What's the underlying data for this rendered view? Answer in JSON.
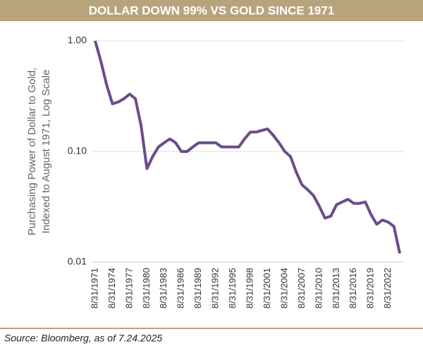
{
  "chart_data": {
    "type": "line",
    "title": "DOLLAR DOWN 99% VS GOLD SINCE 1971",
    "y_label": [
      "Purchasing Power of Dollar to Gold,",
      "Indexed to August 1971, Log Scale"
    ],
    "source": "Source: Bloomberg, as of 7.24.2025",
    "log_scale": true,
    "grid": true,
    "ylim": [
      0.01,
      1
    ],
    "yticks": [
      0.01,
      {
        "value": 0.1,
        "label": "0.10"
      },
      {
        "value": 1,
        "label": "1.00"
      }
    ],
    "xticks": [
      "8/31/1971",
      "8/31/1974",
      "8/31/1977",
      "8/31/1980",
      "8/31/1983",
      "8/31/1986",
      "8/31/1989",
      "8/31/1992",
      "8/31/1995",
      "8/31/1998",
      "8/31/2001",
      "8/31/2004",
      "8/31/2007",
      "8/31/2010",
      "8/31/2013",
      "8/31/2016",
      "8/31/2019",
      "8/31/2022"
    ],
    "x": [
      "8/31/1971",
      "8/31/1972",
      "8/31/1973",
      "8/31/1974",
      "8/31/1975",
      "8/31/1976",
      "8/31/1977",
      "8/31/1978",
      "8/31/1979",
      "8/31/1980",
      "8/31/1981",
      "8/31/1982",
      "8/31/1983",
      "8/31/1984",
      "8/31/1985",
      "8/31/1986",
      "8/31/1987",
      "8/31/1988",
      "8/31/1989",
      "8/31/1990",
      "8/31/1991",
      "8/31/1992",
      "8/31/1993",
      "8/31/1994",
      "8/31/1995",
      "8/31/1996",
      "8/31/1997",
      "8/31/1998",
      "8/31/1999",
      "8/31/2000",
      "8/31/2001",
      "8/31/2002",
      "8/31/2003",
      "8/31/2004",
      "8/31/2005",
      "8/31/2006",
      "8/31/2007",
      "8/31/2008",
      "8/31/2009",
      "8/31/2010",
      "8/31/2011",
      "8/31/2012",
      "8/31/2013",
      "8/31/2014",
      "8/31/2015",
      "8/31/2016",
      "8/31/2017",
      "8/31/2018",
      "8/31/2019",
      "8/31/2020",
      "8/31/2021",
      "8/31/2022",
      "8/31/2023",
      "8/31/2024"
    ],
    "series": [
      {
        "color": "#6b4c8a",
        "values": [
          1.0,
          0.65,
          0.4,
          0.27,
          0.28,
          0.3,
          0.33,
          0.3,
          0.17,
          0.07,
          0.09,
          0.11,
          0.12,
          0.13,
          0.12,
          0.1,
          0.1,
          0.11,
          0.12,
          0.12,
          0.12,
          0.12,
          0.11,
          0.11,
          0.11,
          0.11,
          0.13,
          0.15,
          0.15,
          0.155,
          0.16,
          0.14,
          0.12,
          0.1,
          0.09,
          0.065,
          0.05,
          0.045,
          0.04,
          0.032,
          0.025,
          0.026,
          0.033,
          0.035,
          0.037,
          0.034,
          0.034,
          0.035,
          0.027,
          0.022,
          0.024,
          0.023,
          0.021,
          0.012
        ]
      }
    ]
  }
}
